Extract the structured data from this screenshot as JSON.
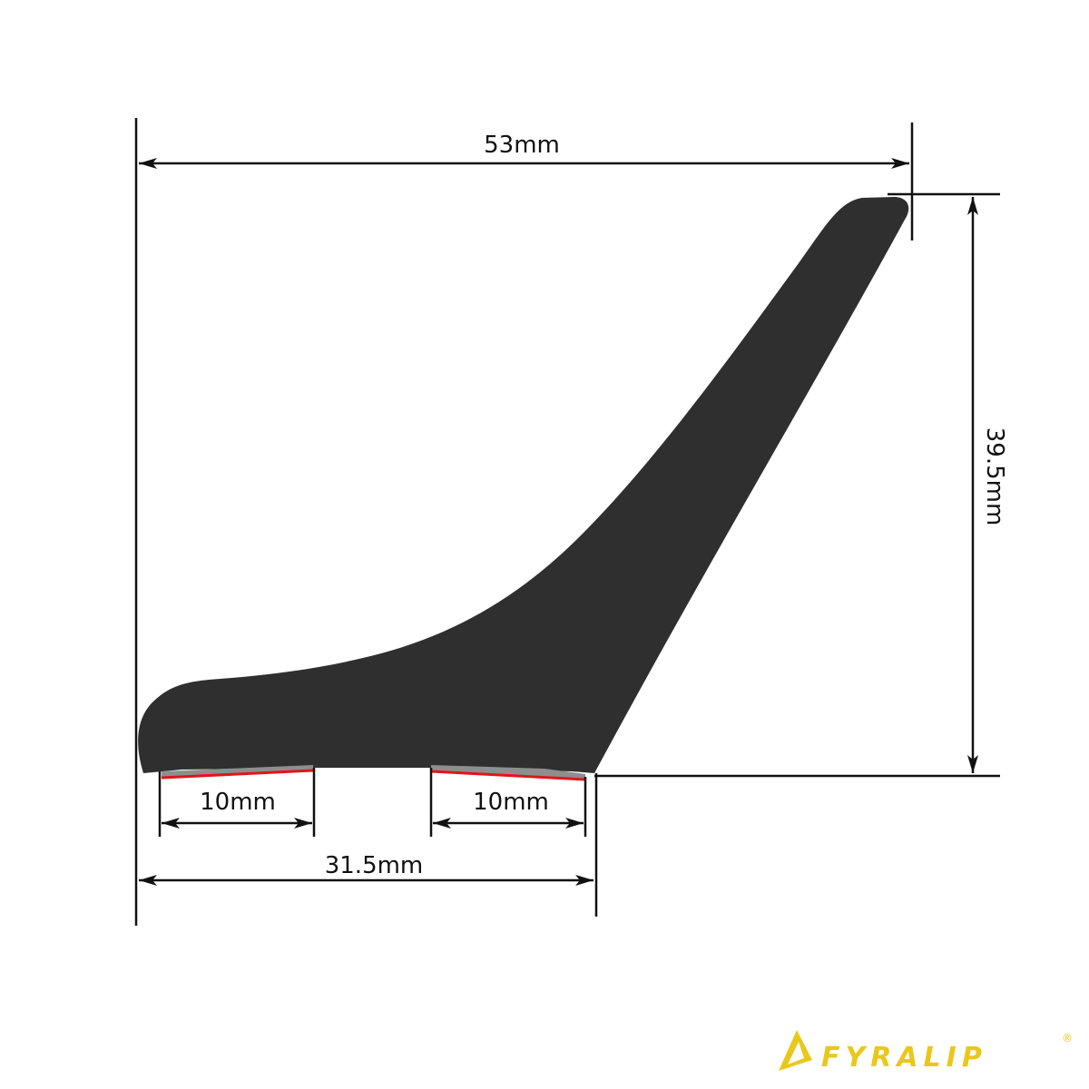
{
  "dimensions": {
    "overall_width": "53mm",
    "height": "39.5mm",
    "base_width": "31.5mm",
    "tape_left": "10mm",
    "tape_right": "10mm"
  },
  "colors": {
    "profile": "#2f2f2f",
    "tape": "#8e8e8e",
    "tape_liner": "#e0161a",
    "dimension_line": "#111111",
    "logo": "#e9c81c"
  },
  "logo": {
    "text": "FYRALIP",
    "mark": "®"
  }
}
